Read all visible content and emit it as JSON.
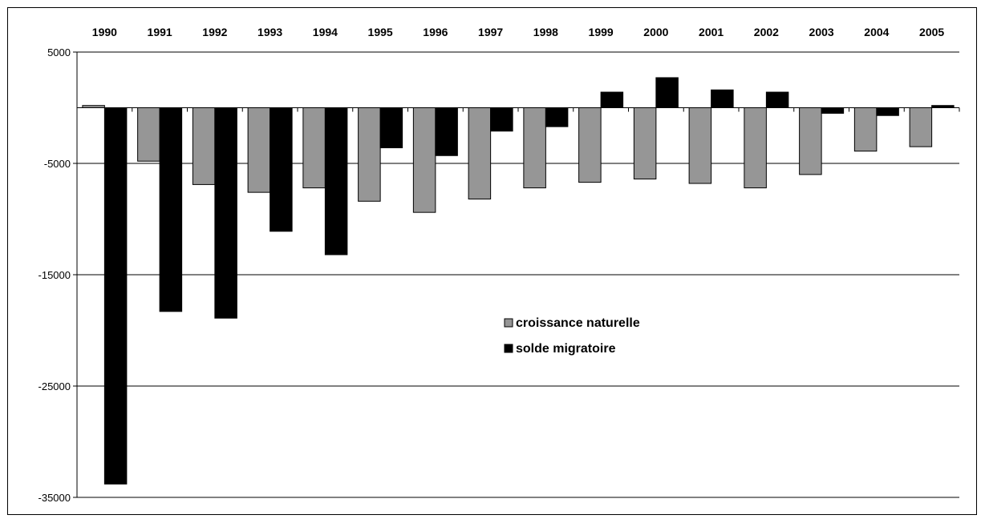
{
  "chart_data": {
    "type": "bar",
    "title": "",
    "xlabel": "",
    "ylabel": "",
    "categories": [
      "1990",
      "1991",
      "1992",
      "1993",
      "1994",
      "1995",
      "1996",
      "1997",
      "1998",
      "1999",
      "2000",
      "2001",
      "2002",
      "2003",
      "2004",
      "2005"
    ],
    "series": [
      {
        "name": "croissance naturelle",
        "color": "#969696",
        "values": [
          200,
          -4800,
          -6900,
          -7600,
          -7200,
          -8400,
          -9400,
          -8200,
          -7200,
          -6700,
          -6400,
          -6800,
          -7200,
          -6000,
          -3900,
          -3500
        ]
      },
      {
        "name": "solde migratoire",
        "color": "#000000",
        "values": [
          -33800,
          -18300,
          -18900,
          -11100,
          -13200,
          -3600,
          -4300,
          -2100,
          -1700,
          1400,
          2700,
          1600,
          1400,
          -500,
          -700,
          200
        ]
      }
    ],
    "ylim": [
      -35000,
      5000
    ],
    "yticks": [
      "5000",
      "-5000",
      "-15000",
      "-25000",
      "-35000"
    ],
    "ytick_values": [
      5000,
      -5000,
      -15000,
      -25000,
      -35000
    ],
    "x_axis_labels_position": "top",
    "grid": true,
    "legend_position": "center-right"
  }
}
